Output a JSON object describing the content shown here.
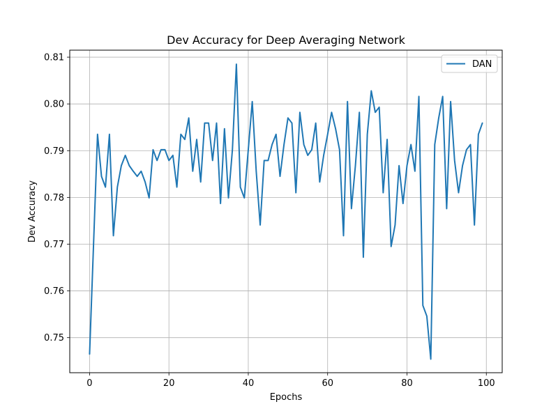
{
  "chart_data": {
    "type": "line",
    "title": "Dev Accuracy for Deep Averaging Network",
    "xlabel": "Epochs",
    "ylabel": "Dev Accuracy",
    "xlim": [
      -5,
      104
    ],
    "ylim": [
      0.7425,
      0.8115
    ],
    "xticks": [
      0,
      20,
      40,
      60,
      80,
      100
    ],
    "yticks": [
      0.75,
      0.76,
      0.77,
      0.78,
      0.79,
      0.8,
      0.81
    ],
    "ytick_labels": [
      "0.75",
      "0.76",
      "0.77",
      "0.78",
      "0.79",
      "0.80",
      "0.81"
    ],
    "grid": true,
    "legend": "top-right",
    "color": "#1f77b4",
    "series": [
      {
        "name": "DAN",
        "values": [
          0.7465,
          0.77,
          0.7935,
          0.7845,
          0.7822,
          0.7935,
          0.7718,
          0.7822,
          0.7868,
          0.789,
          0.7868,
          0.7856,
          0.7845,
          0.7856,
          0.7833,
          0.7799,
          0.7902,
          0.7879,
          0.7902,
          0.7902,
          0.7879,
          0.789,
          0.7822,
          0.7935,
          0.7924,
          0.797,
          0.7856,
          0.7924,
          0.7833,
          0.7959,
          0.7959,
          0.7879,
          0.7959,
          0.7787,
          0.7947,
          0.7799,
          0.7902,
          0.8085,
          0.7822,
          0.7799,
          0.7902,
          0.8005,
          0.7856,
          0.7741,
          0.7879,
          0.7879,
          0.7913,
          0.7935,
          0.7845,
          0.7913,
          0.797,
          0.7959,
          0.781,
          0.7982,
          0.7913,
          0.789,
          0.7902,
          0.7959,
          0.7833,
          0.789,
          0.7935,
          0.7982,
          0.7947,
          0.7902,
          0.7718,
          0.8005,
          0.7776,
          0.7868,
          0.7982,
          0.7672,
          0.7935,
          0.8028,
          0.7982,
          0.7993,
          0.781,
          0.7924,
          0.7695,
          0.7741,
          0.7868,
          0.7787,
          0.7868,
          0.7913,
          0.7856,
          0.8016,
          0.7569,
          0.7546,
          0.7454,
          0.7913,
          0.797,
          0.8016,
          0.7776,
          0.8005,
          0.7879,
          0.781,
          0.7868,
          0.7902,
          0.7913,
          0.7741,
          0.7935,
          0.7959
        ]
      }
    ]
  }
}
